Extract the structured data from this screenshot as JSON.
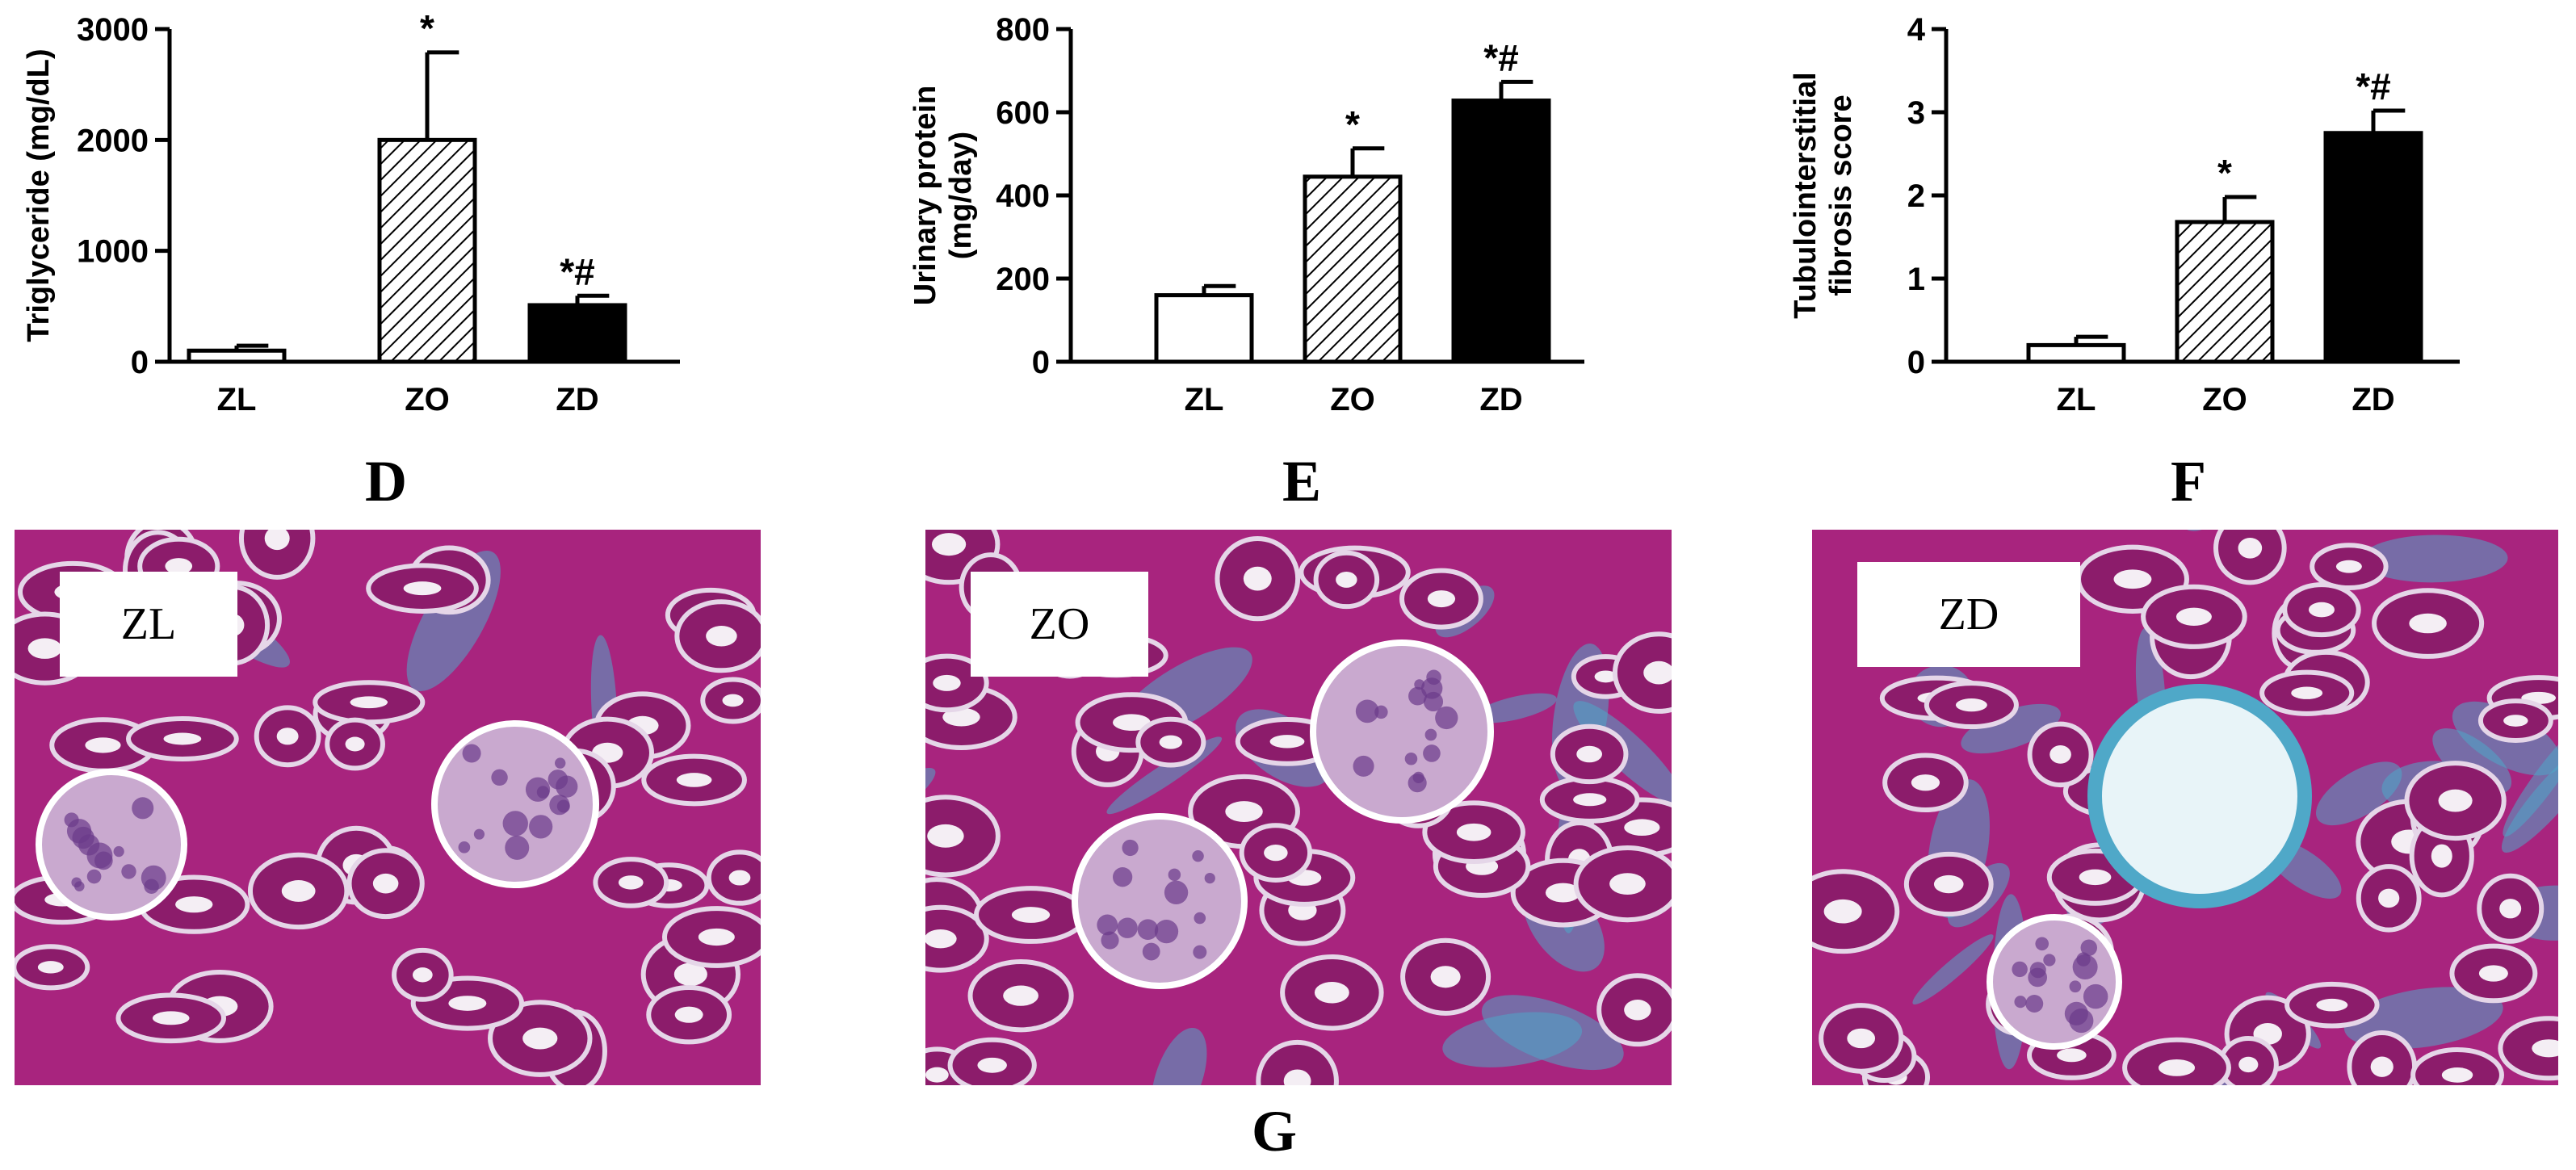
{
  "chart_data": [
    {
      "type": "bar",
      "categories": [
        "ZL",
        "ZO",
        "ZD"
      ],
      "values": [
        100,
        2000,
        510
      ],
      "errors": [
        45,
        790,
        85
      ],
      "annotations": [
        "",
        "*",
        "*#"
      ],
      "ylabel": "Triglyceride (mg/dL)",
      "xlabel": "",
      "ylim": [
        0,
        3000
      ],
      "yticks": [
        "0",
        "1000",
        "2000",
        "3000"
      ],
      "bar_fills": [
        "white",
        "hatched",
        "black"
      ]
    },
    {
      "type": "bar",
      "categories": [
        "ZL",
        "ZO",
        "ZD"
      ],
      "values": [
        160,
        445,
        628
      ],
      "errors": [
        22,
        68,
        45
      ],
      "annotations": [
        "",
        "*",
        "*#"
      ],
      "ylabel_lines": [
        "Urinary protein",
        "(mg/day)"
      ],
      "xlabel": "",
      "ylim": [
        0,
        800
      ],
      "yticks": [
        "0",
        "200",
        "400",
        "600",
        "800"
      ],
      "bar_fills": [
        "white",
        "hatched",
        "black"
      ]
    },
    {
      "type": "bar",
      "categories": [
        "ZL",
        "ZO",
        "ZD"
      ],
      "values": [
        0.2,
        1.68,
        2.75
      ],
      "errors": [
        0.1,
        0.3,
        0.27
      ],
      "annotations": [
        "",
        "*",
        "*#"
      ],
      "ylabel_lines": [
        "Tubulointerstitial",
        "fibrosis score"
      ],
      "xlabel": "",
      "ylim": [
        0,
        4
      ],
      "yticks": [
        "0",
        "1",
        "2",
        "3",
        "4"
      ],
      "bar_fills": [
        "white",
        "hatched",
        "black"
      ]
    }
  ],
  "panel_letters": [
    "D",
    "E",
    "F",
    "G"
  ],
  "micrographs": [
    {
      "label": "ZL",
      "fibrosis": "low"
    },
    {
      "label": "ZO",
      "fibrosis": "moderate"
    },
    {
      "label": "ZD",
      "fibrosis": "high"
    }
  ],
  "colors": {
    "tissue_base": "#a8247e",
    "tubule": "#8c1c6b",
    "lumen": "#f4eef4",
    "fibrosis": "#4fa8c8",
    "glomerulus": "#c9a9cf",
    "bar_black": "#000000",
    "bar_white": "#ffffff"
  }
}
